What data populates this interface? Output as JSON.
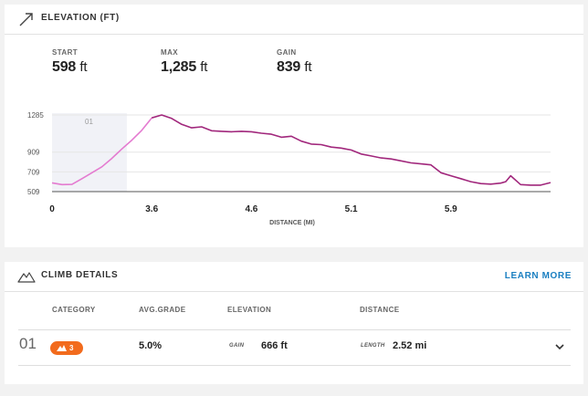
{
  "elevation": {
    "title": "ELEVATION (FT)",
    "stats": [
      {
        "label": "START",
        "value": "598",
        "unit": "ft"
      },
      {
        "label": "MAX",
        "value": "1,285",
        "unit": "ft"
      },
      {
        "label": "GAIN",
        "value": "839",
        "unit": "ft"
      }
    ]
  },
  "chart_data": {
    "type": "area",
    "xlabel": "DISTANCE (MI)",
    "y_ticks": [
      "1285",
      "909",
      "709",
      "509"
    ],
    "x_ticks": [
      "0",
      "3.6",
      "4.6",
      "5.1",
      "5.9"
    ],
    "ylim": [
      509,
      1285
    ],
    "line_color": "#a1277c",
    "highlight_color": "#e47bd0",
    "shaded_label": "01",
    "series": [
      {
        "x": [
          0.0,
          0.02,
          0.04,
          0.06,
          0.08,
          0.1,
          0.12,
          0.14,
          0.16,
          0.18,
          0.2,
          0.22,
          0.24,
          0.26,
          0.28,
          0.3,
          0.32,
          0.34,
          0.36,
          0.38,
          0.4,
          0.42,
          0.44,
          0.46,
          0.48,
          0.5,
          0.52,
          0.54,
          0.56,
          0.58,
          0.6,
          0.62,
          0.64,
          0.66,
          0.68,
          0.7,
          0.72,
          0.74,
          0.76,
          0.78,
          0.8,
          0.82,
          0.84,
          0.86,
          0.88,
          0.9,
          0.91,
          0.92,
          0.94,
          0.96,
          0.98,
          1.0
        ],
        "y": [
          598,
          580,
          582,
          640,
          700,
          760,
          845,
          940,
          1030,
          1130,
          1255,
          1285,
          1250,
          1190,
          1155,
          1165,
          1125,
          1120,
          1115,
          1120,
          1115,
          1100,
          1090,
          1060,
          1070,
          1020,
          990,
          985,
          960,
          950,
          930,
          890,
          870,
          850,
          840,
          820,
          800,
          790,
          780,
          700,
          670,
          640,
          610,
          590,
          585,
          595,
          610,
          670,
          580,
          575,
          575,
          600
        ]
      }
    ],
    "shaded_until": 0.15,
    "grid": true
  },
  "climb": {
    "title": "CLIMB DETAILS",
    "learn_more": "LEARN MORE",
    "headers": {
      "category": "CATEGORY",
      "avg_grade": "AVG.GRADE",
      "elevation": "ELEVATION",
      "distance": "DISTANCE"
    },
    "row": {
      "index": "01",
      "category": "3",
      "avg_grade": "5.0%",
      "gain_label": "GAIN",
      "gain_value": "666 ft",
      "length_label": "LENGTH",
      "length_value": "2.52 mi"
    }
  }
}
